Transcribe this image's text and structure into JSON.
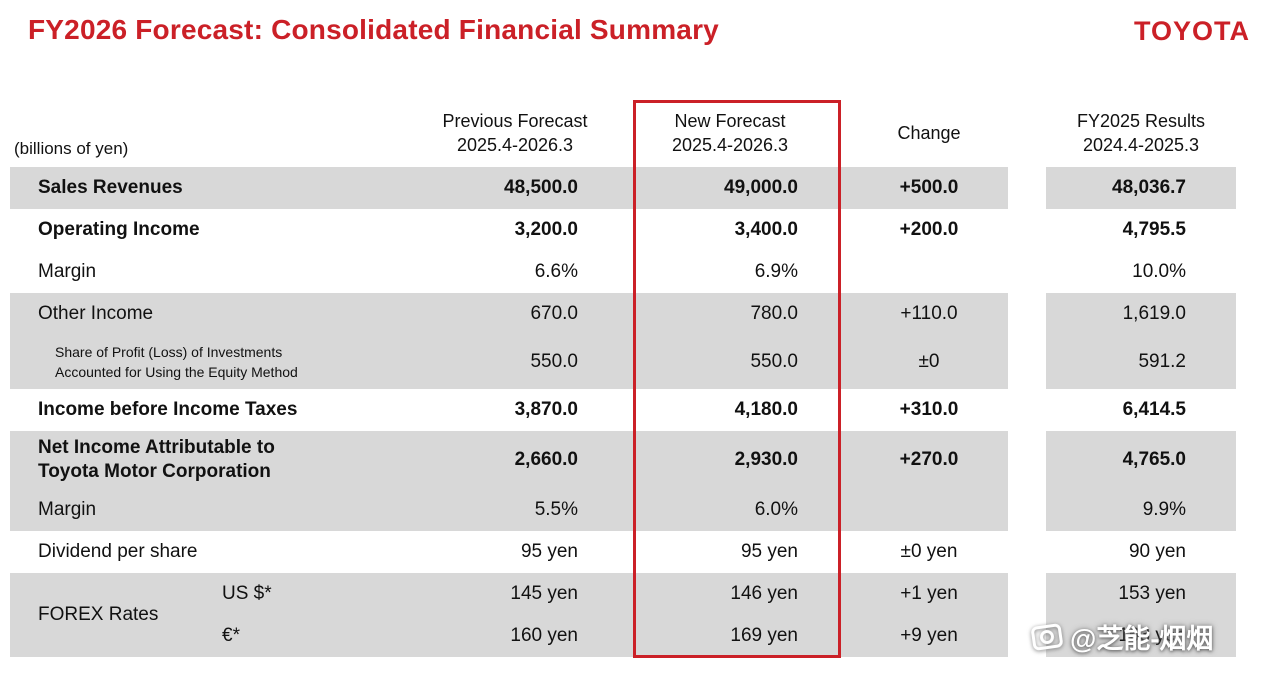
{
  "header": {
    "title": "FY2026 Forecast: Consolidated Financial Summary",
    "brand": "TOYOTA"
  },
  "table": {
    "unit_note": "(billions of yen)",
    "columns": {
      "previous": {
        "title": "Previous Forecast",
        "period": "2025.4-2026.3"
      },
      "new_forecast": {
        "title": "New Forecast",
        "period": "2025.4-2026.3"
      },
      "change": {
        "title": "Change",
        "period": ""
      },
      "fy2025": {
        "title": "FY2025 Results",
        "period": "2024.4-2025.3"
      }
    },
    "forex_group_label": "FOREX Rates",
    "rows": [
      {
        "label": "Sales Revenues",
        "bold": true,
        "shaded": true,
        "previous": "48,500.0",
        "new_forecast": "49,000.0",
        "change": "+500.0",
        "fy2025": "48,036.7"
      },
      {
        "label": "Operating Income",
        "bold": true,
        "shaded": false,
        "previous": "3,200.0",
        "new_forecast": "3,400.0",
        "change": "+200.0",
        "fy2025": "4,795.5"
      },
      {
        "label": "Margin",
        "bold": false,
        "shaded": false,
        "previous": "6.6%",
        "new_forecast": "6.9%",
        "change": "",
        "fy2025": "10.0%"
      },
      {
        "label": "Other Income",
        "bold": false,
        "shaded": true,
        "previous": "670.0",
        "new_forecast": "780.0",
        "change": "+110.0",
        "fy2025": "1,619.0"
      },
      {
        "label": "Share of Profit (Loss) of Investments\nAccounted for Using the Equity Method",
        "bold": false,
        "shaded": true,
        "small": true,
        "previous": "550.0",
        "new_forecast": "550.0",
        "change": "±0",
        "fy2025": "591.2"
      },
      {
        "label": "Income before Income Taxes",
        "bold": true,
        "shaded": false,
        "previous": "3,870.0",
        "new_forecast": "4,180.0",
        "change": "+310.0",
        "fy2025": "6,414.5"
      },
      {
        "label": "Net Income Attributable to\nToyota Motor Corporation",
        "bold": true,
        "shaded": true,
        "previous": "2,660.0",
        "new_forecast": "2,930.0",
        "change": "+270.0",
        "fy2025": "4,765.0"
      },
      {
        "label": "Margin",
        "bold": false,
        "shaded": true,
        "previous": "5.5%",
        "new_forecast": "6.0%",
        "change": "",
        "fy2025": "9.9%"
      },
      {
        "label": "Dividend per share",
        "bold": false,
        "shaded": false,
        "previous": "95 yen",
        "new_forecast": "95 yen",
        "change": "±0 yen",
        "fy2025": "90 yen"
      },
      {
        "label": "",
        "sublabel": "US $*",
        "bold": false,
        "shaded": true,
        "previous": "145 yen",
        "new_forecast": "146 yen",
        "change": "+1 yen",
        "fy2025": "153 yen"
      },
      {
        "label": "",
        "sublabel": "€*",
        "bold": false,
        "shaded": true,
        "previous": "160 yen",
        "new_forecast": "169 yen",
        "change": "+9 yen",
        "fy2025": "163 yen"
      }
    ]
  },
  "colors": {
    "accent_red": "#cb2027",
    "row_shade": "#d8d8d8"
  },
  "watermark": {
    "text": "@芝能-烟烟"
  }
}
